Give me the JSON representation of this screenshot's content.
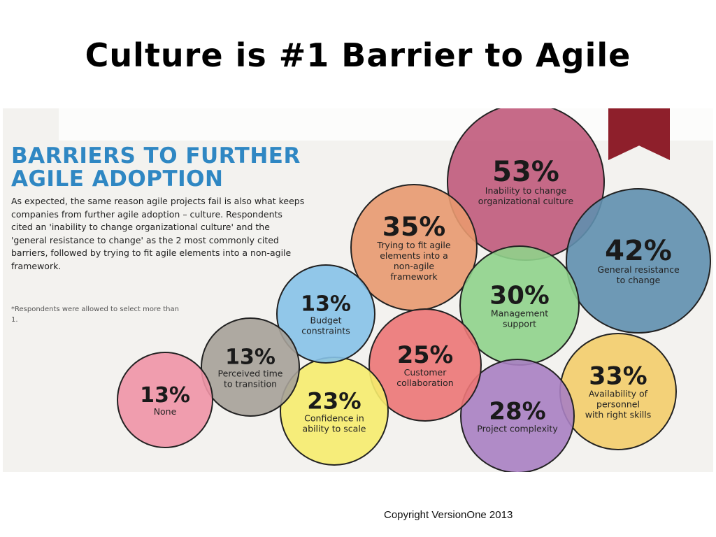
{
  "slide": {
    "title": "Culture is #1 Barrier to Agile",
    "copyright": "Copyright VersionOne 2013"
  },
  "infographic": {
    "heading_line1": "BARRIERS TO FURTHER",
    "heading_line2": "AGILE ADOPTION",
    "body": "As expected, the same reason agile projects fail is also what keeps companies from further agile adoption – culture. Respondents cited an 'inability to change organizational culture' and the 'general resistance to change' as the 2 most commonly cited barriers, followed by trying to fit agile elements into a non-agile framework.",
    "footnote": "*Respondents were allowed to select more than 1.",
    "accent_color": "#2f87c3",
    "ribbon_color": "#8e1f2b"
  },
  "chart_data": {
    "type": "bubble",
    "title": "BARRIERS TO FURTHER AGILE ADOPTION",
    "unit": "%",
    "points": [
      {
        "label": "Inability to change organizational culture",
        "value": 53,
        "color": "#c05a7b"
      },
      {
        "label": "General resistance to change",
        "value": 42,
        "color": "#5f8fae"
      },
      {
        "label": "Trying to fit agile elements into a non-agile framework",
        "value": 35,
        "color": "#e8996f"
      },
      {
        "label": "Availability of personnel with right skills",
        "value": 33,
        "color": "#f3cd6a"
      },
      {
        "label": "Management support",
        "value": 30,
        "color": "#8fd38b"
      },
      {
        "label": "Project complexity",
        "value": 28,
        "color": "#a880c2"
      },
      {
        "label": "Customer collaboration",
        "value": 25,
        "color": "#ec7676"
      },
      {
        "label": "Confidence in ability to scale",
        "value": 23,
        "color": "#f6ec6d"
      },
      {
        "label": "Budget constraints",
        "value": 13,
        "color": "#86c2e8"
      },
      {
        "label": "Perceived time to transition",
        "value": 13,
        "color": "#a6a198"
      },
      {
        "label": "None",
        "value": 13,
        "color": "#f093a6"
      }
    ]
  }
}
